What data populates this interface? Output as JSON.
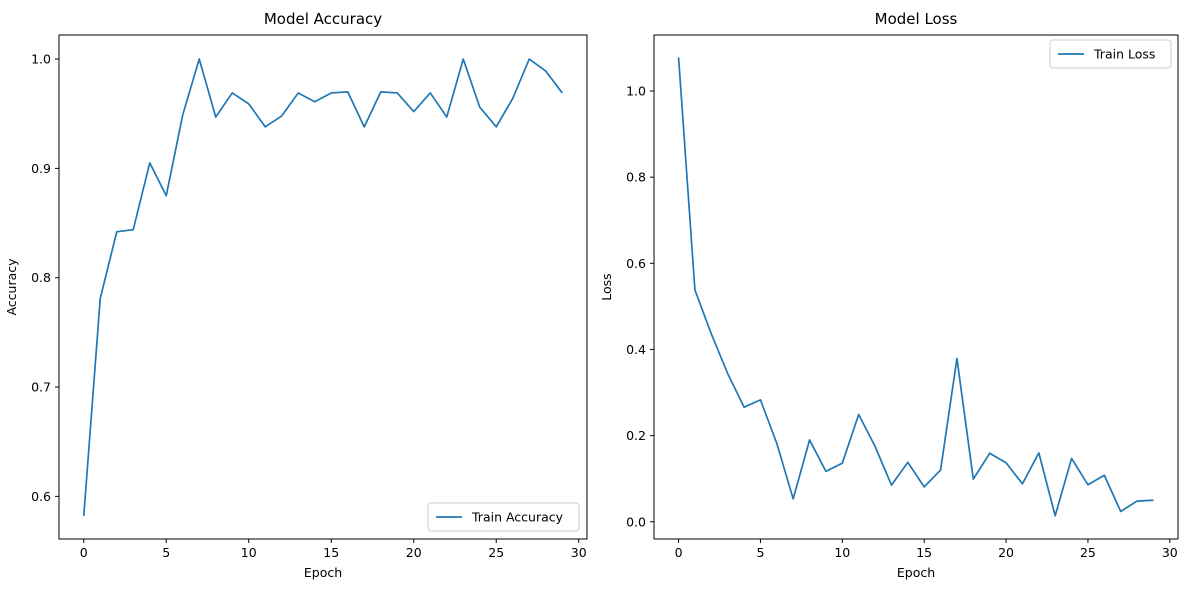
{
  "chart_data": [
    {
      "type": "line",
      "title": "Model Accuracy",
      "xlabel": "Epoch",
      "ylabel": "Accuracy",
      "xlim": [
        -1.5,
        30.5
      ],
      "ylim": [
        0.561,
        1.022
      ],
      "xticks": [
        0,
        5,
        10,
        15,
        20,
        25,
        30
      ],
      "yticks": [
        0.6,
        0.7,
        0.8,
        0.9,
        1.0
      ],
      "xtick_labels": [
        "0",
        "5",
        "10",
        "15",
        "20",
        "25",
        "30"
      ],
      "ytick_labels": [
        "0.6",
        "0.7",
        "0.8",
        "0.9",
        "1.0"
      ],
      "grid": false,
      "legend_position": "lower-right",
      "series": [
        {
          "name": "Train Accuracy",
          "color": "#1f77b4",
          "x": [
            0,
            1,
            2,
            3,
            4,
            5,
            6,
            7,
            8,
            9,
            10,
            11,
            12,
            13,
            14,
            15,
            16,
            17,
            18,
            19,
            20,
            21,
            22,
            23,
            24,
            25,
            26,
            27,
            28,
            29
          ],
          "y": [
            0.582,
            0.781,
            0.842,
            0.844,
            0.905,
            0.875,
            0.949,
            1.0,
            0.947,
            0.969,
            0.959,
            0.938,
            0.948,
            0.969,
            0.961,
            0.969,
            0.97,
            0.938,
            0.97,
            0.969,
            0.952,
            0.969,
            0.947,
            1.0,
            0.956,
            0.938,
            0.964,
            1.0,
            0.989,
            0.969
          ]
        }
      ]
    },
    {
      "type": "line",
      "title": "Model Loss",
      "xlabel": "Epoch",
      "ylabel": "Loss",
      "xlim": [
        -1.5,
        30.5
      ],
      "ylim": [
        -0.04,
        1.13
      ],
      "xticks": [
        0,
        5,
        10,
        15,
        20,
        25,
        30
      ],
      "yticks": [
        0.0,
        0.2,
        0.4,
        0.6,
        0.8,
        1.0
      ],
      "xtick_labels": [
        "0",
        "5",
        "10",
        "15",
        "20",
        "25",
        "30"
      ],
      "ytick_labels": [
        "0.0",
        "0.2",
        "0.4",
        "0.6",
        "0.8",
        "1.0"
      ],
      "grid": false,
      "legend_position": "top-right",
      "series": [
        {
          "name": "Train Loss",
          "color": "#1f77b4",
          "x": [
            0,
            1,
            2,
            3,
            4,
            5,
            6,
            7,
            8,
            9,
            10,
            11,
            12,
            13,
            14,
            15,
            16,
            17,
            18,
            19,
            20,
            21,
            22,
            23,
            24,
            25,
            26,
            27,
            28,
            29
          ],
          "y": [
            1.078,
            0.538,
            0.436,
            0.344,
            0.266,
            0.283,
            0.182,
            0.053,
            0.19,
            0.117,
            0.136,
            0.249,
            0.175,
            0.085,
            0.138,
            0.081,
            0.12,
            0.379,
            0.099,
            0.159,
            0.137,
            0.088,
            0.16,
            0.014,
            0.147,
            0.086,
            0.108,
            0.024,
            0.048,
            0.05
          ]
        }
      ]
    }
  ]
}
